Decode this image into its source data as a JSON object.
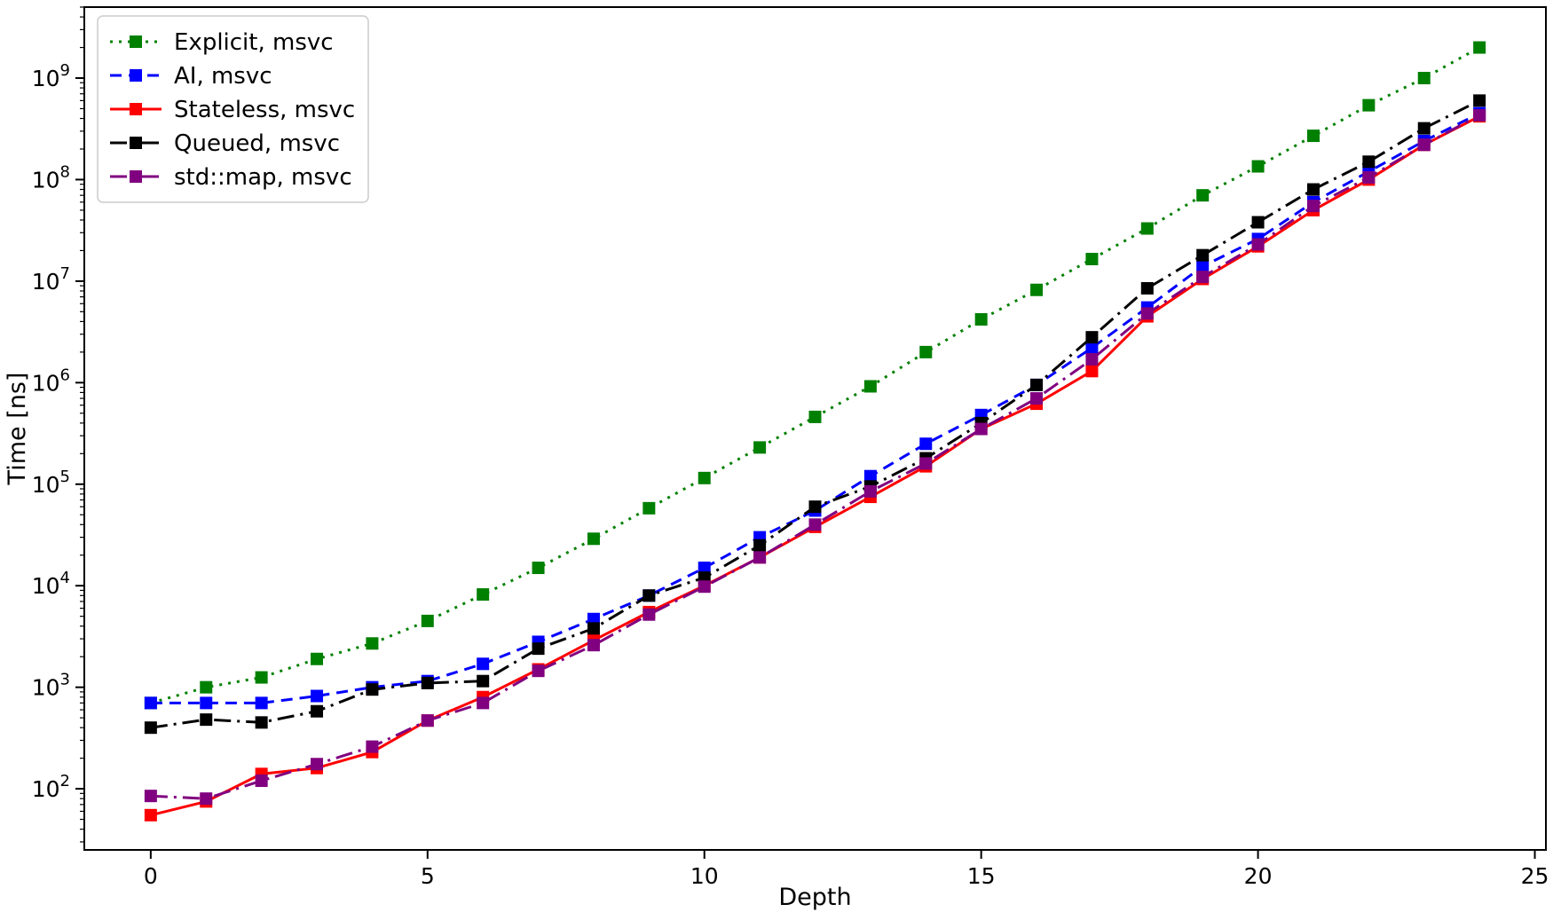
{
  "figure": {
    "background": "#ffffff",
    "xlabel": "Depth",
    "ylabel": "Time [ns]",
    "x_ticks": [
      0,
      5,
      10,
      15,
      20,
      25
    ],
    "y_tick_base": "10",
    "y_ticks_exponents": [
      2,
      3,
      4,
      5,
      6,
      7,
      8,
      9
    ]
  },
  "chart_data": {
    "type": "line",
    "title": "",
    "xlabel": "Depth",
    "ylabel": "Time [ns]",
    "x": [
      0,
      1,
      2,
      3,
      4,
      5,
      6,
      7,
      8,
      9,
      10,
      11,
      12,
      13,
      14,
      15,
      16,
      17,
      18,
      19,
      20,
      21,
      22,
      23,
      24
    ],
    "xlim": [
      -1.2,
      25.2
    ],
    "y_scale": "log",
    "ylim": [
      25,
      5000000000
    ],
    "grid": false,
    "legend_position": "upper-left",
    "series": [
      {
        "name": "Explicit, msvc",
        "color": "#008000",
        "linestyle": "dotted",
        "marker": "square",
        "values": [
          700,
          1000,
          1250,
          1900,
          2700,
          4500,
          8200,
          15000,
          29000,
          58000,
          115000,
          230000,
          460000,
          920000,
          2000000,
          4200000,
          8200000,
          16500000,
          33000000,
          70000000,
          135000000,
          270000000,
          540000000,
          1000000000,
          2000000000
        ]
      },
      {
        "name": "AI, msvc",
        "color": "#0000ff",
        "linestyle": "dashed",
        "marker": "square",
        "values": [
          700,
          700,
          700,
          820,
          1000,
          1150,
          1700,
          2800,
          4700,
          8000,
          15000,
          30000,
          55000,
          120000,
          250000,
          480000,
          950000,
          2200000,
          5500000,
          14000000,
          26000000,
          60000000,
          120000000,
          240000000,
          450000000
        ]
      },
      {
        "name": "Stateless, msvc",
        "color": "#ff0000",
        "linestyle": "solid",
        "marker": "square",
        "values": [
          55,
          75,
          140,
          160,
          230,
          470,
          800,
          1500,
          2900,
          5500,
          10000,
          19000,
          38000,
          75000,
          150000,
          350000,
          620000,
          1300000,
          4500000,
          10500000,
          22000000,
          50000000,
          100000000,
          220000000,
          420000000
        ]
      },
      {
        "name": "Queued, msvc",
        "color": "#000000",
        "linestyle": "dashdot",
        "marker": "square",
        "values": [
          400,
          480,
          450,
          580,
          950,
          1100,
          1150,
          2400,
          3800,
          8000,
          12000,
          25000,
          60000,
          95000,
          180000,
          400000,
          950000,
          2800000,
          8500000,
          18000000,
          38000000,
          80000000,
          150000000,
          320000000,
          600000000
        ]
      },
      {
        "name": "std::map, msvc",
        "color": "#800080",
        "linestyle": "dashdot",
        "marker": "square",
        "values": [
          85,
          80,
          120,
          175,
          260,
          470,
          700,
          1450,
          2600,
          5200,
          9800,
          19000,
          40000,
          85000,
          160000,
          350000,
          700000,
          1700000,
          4800000,
          11000000,
          23000000,
          55000000,
          105000000,
          220000000,
          430000000
        ]
      }
    ]
  }
}
